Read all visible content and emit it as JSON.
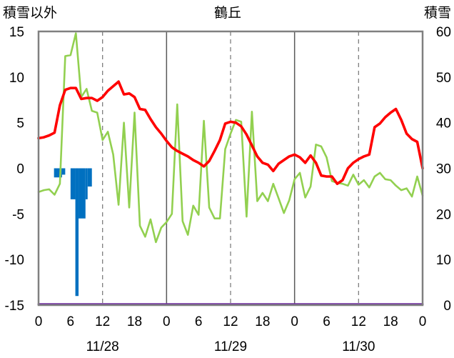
{
  "chart_data": {
    "type": "line",
    "title": "鶴丘",
    "y_left_label": "積雪以外",
    "y_right_label": "積雪",
    "y_left_lim": [
      -15,
      15
    ],
    "y_left_ticks": [
      -15,
      -10,
      -5,
      0,
      5,
      10,
      15
    ],
    "y_right_lim": [
      0,
      60
    ],
    "y_right_ticks": [
      0,
      10,
      20,
      30,
      40,
      50,
      60
    ],
    "x_lim": [
      0,
      72
    ],
    "x_tick_labels": [
      "0",
      "6",
      "12",
      "18",
      "0",
      "6",
      "12",
      "18",
      "0",
      "6",
      "12",
      "18",
      "0"
    ],
    "date_labels": [
      {
        "label": "11/28",
        "x": 12
      },
      {
        "label": "11/29",
        "x": 36
      },
      {
        "label": "11/30",
        "x": 60
      }
    ],
    "grid": "vertical dashed lines every 12 hours, solid lines at day boundaries",
    "colors": {
      "temperature": "#ff0000",
      "other": "#92d050",
      "bars": "#0070c0",
      "snow_depth": "#7030a0"
    },
    "series": [
      {
        "axis": "left",
        "style": "red-line",
        "x": [
          0,
          1,
          2,
          3,
          4,
          5,
          6,
          7,
          8,
          9,
          10,
          11,
          12,
          13,
          14,
          15,
          16,
          17,
          18,
          19,
          20,
          21,
          22,
          23,
          24,
          25,
          26,
          27,
          28,
          29,
          30,
          31,
          32,
          33,
          34,
          35,
          36,
          37,
          38,
          39,
          40,
          41,
          42,
          43,
          44,
          45,
          46,
          47,
          48,
          49,
          50,
          51,
          52,
          53,
          54,
          55,
          56,
          57,
          58,
          59,
          60,
          61,
          62,
          63,
          64,
          65,
          66,
          67,
          68,
          69,
          70,
          71,
          72
        ],
        "values": [
          3.3,
          3.4,
          3.6,
          3.9,
          6.9,
          8.6,
          8.8,
          8.8,
          7.6,
          7.7,
          7.7,
          7.4,
          7.8,
          8.5,
          9.0,
          9.5,
          8.1,
          8.2,
          7.8,
          6.5,
          6.4,
          5.4,
          4.5,
          3.8,
          3.0,
          2.3,
          1.9,
          1.6,
          1.3,
          0.9,
          0.6,
          0.2,
          0.8,
          1.9,
          3.1,
          4.9,
          5.1,
          5.0,
          4.6,
          3.7,
          2.5,
          1.3,
          0.6,
          0.4,
          -0.3,
          0.5,
          0.9,
          1.3,
          1.5,
          1.2,
          0.6,
          1.4,
          0.6,
          -0.8,
          -0.9,
          -0.9,
          -1.7,
          -1.3,
          0.0,
          0.6,
          1.0,
          1.3,
          1.5,
          4.5,
          4.9,
          5.6,
          6.1,
          6.5,
          5.3,
          3.8,
          3.2,
          2.9,
          0.0
        ]
      },
      {
        "axis": "left",
        "style": "green-line",
        "x": [
          0,
          1,
          2,
          3,
          4,
          5,
          6,
          7,
          8,
          9,
          10,
          11,
          12,
          13,
          14,
          15,
          16,
          17,
          18,
          19,
          20,
          21,
          22,
          23,
          24,
          25,
          26,
          27,
          28,
          29,
          30,
          31,
          32,
          33,
          34,
          35,
          36,
          37,
          38,
          39,
          40,
          41,
          42,
          43,
          44,
          45,
          46,
          47,
          48,
          49,
          50,
          51,
          52,
          53,
          54,
          55,
          56,
          57,
          58,
          59,
          60,
          61,
          62,
          63,
          64,
          65,
          66,
          67,
          68,
          69,
          70,
          71,
          72
        ],
        "values": [
          -2.6,
          -2.4,
          -2.3,
          -2.9,
          -1.7,
          12.3,
          12.4,
          14.8,
          7.8,
          8.7,
          6.3,
          6.1,
          3.1,
          4.0,
          1.5,
          -4.0,
          5.0,
          -4.3,
          6.1,
          -6.3,
          -7.5,
          -5.6,
          -8.1,
          -6.5,
          -5.9,
          -5.0,
          7.0,
          -5.8,
          -7.3,
          -4.1,
          -5.1,
          5.2,
          -4.3,
          -5.5,
          -5.5,
          2.1,
          3.8,
          5.3,
          5.1,
          -5.3,
          6.2,
          -3.6,
          -2.7,
          -3.6,
          -1.7,
          -3.3,
          -4.9,
          -3.5,
          -1.2,
          -0.5,
          -3.2,
          -2.0,
          2.6,
          2.4,
          1.2,
          -1.4,
          -1.6,
          -1.7,
          -1.9,
          -0.7,
          -1.8,
          -1.3,
          -2.1,
          -0.9,
          -0.5,
          -1.2,
          -1.3,
          -1.9,
          -2.4,
          -2.2,
          -3.1,
          -0.9,
          -3.0
        ]
      },
      {
        "axis": "left",
        "style": "blue-bars",
        "bars": [
          {
            "x0": 2.9,
            "x1": 4.4,
            "value": -1.0
          },
          {
            "x0": 4.4,
            "x1": 5.0,
            "value": -0.7
          },
          {
            "x0": 6.0,
            "x1": 6.9,
            "value": -3.4
          },
          {
            "x0": 6.9,
            "x1": 7.5,
            "value": -14.0
          },
          {
            "x0": 7.5,
            "x1": 8.8,
            "value": -5.5
          },
          {
            "x0": 8.8,
            "x1": 9.2,
            "value": -3.4
          },
          {
            "x0": 9.2,
            "x1": 10.0,
            "value": -2.0
          }
        ]
      },
      {
        "axis": "right",
        "style": "purple-line",
        "x": [
          0,
          72
        ],
        "values": [
          0.2,
          0.2
        ]
      }
    ]
  }
}
